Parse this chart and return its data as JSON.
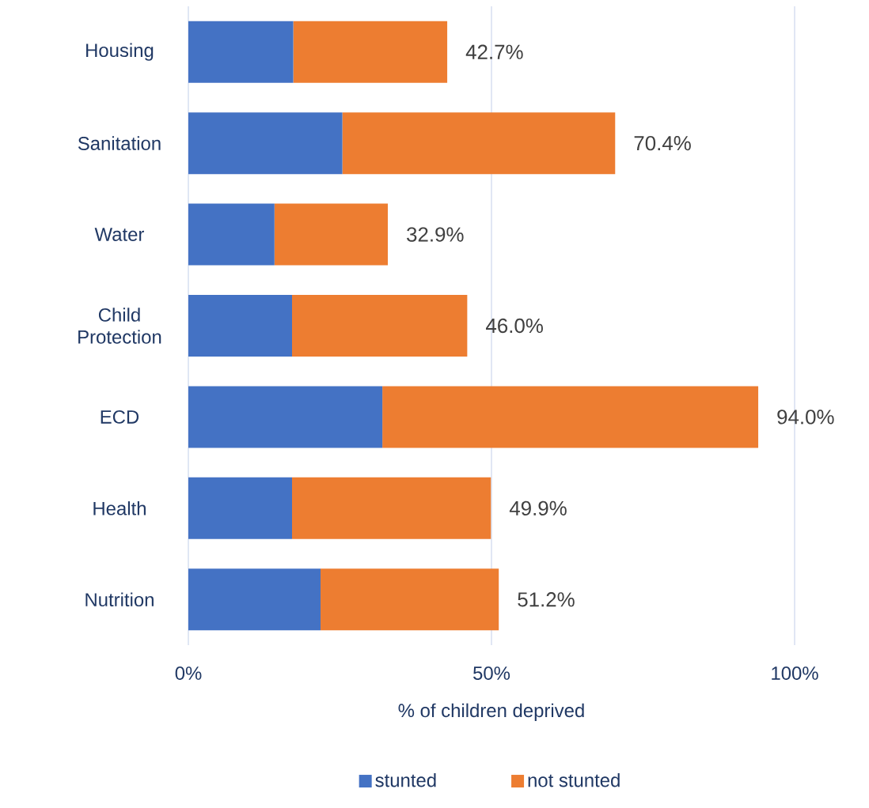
{
  "chart_data": {
    "type": "bar",
    "orientation": "horizontal",
    "stacked": true,
    "categories": [
      "Housing",
      "Sanitation",
      "Water",
      "Child Protection",
      "ECD",
      "Health",
      "Nutrition"
    ],
    "series": [
      {
        "name": "stunted",
        "color": "#4472c4",
        "values": [
          17.3,
          25.4,
          14.2,
          17.1,
          32.0,
          17.1,
          21.8
        ]
      },
      {
        "name": "not stunted",
        "color": "#ed7d31",
        "values": [
          25.4,
          45.0,
          18.7,
          28.9,
          62.0,
          32.8,
          29.4
        ]
      }
    ],
    "totals": [
      "42.7%",
      "70.4%",
      "32.9%",
      "46.0%",
      "94.0%",
      "49.9%",
      "51.2%"
    ],
    "xlabel": "% of children deprived",
    "xlim": [
      0,
      100
    ],
    "xticks": [
      {
        "value": 0,
        "label": "0%"
      },
      {
        "value": 50,
        "label": "50%"
      },
      {
        "value": 100,
        "label": "100%"
      }
    ],
    "grid": "x",
    "legend": "bottom"
  }
}
